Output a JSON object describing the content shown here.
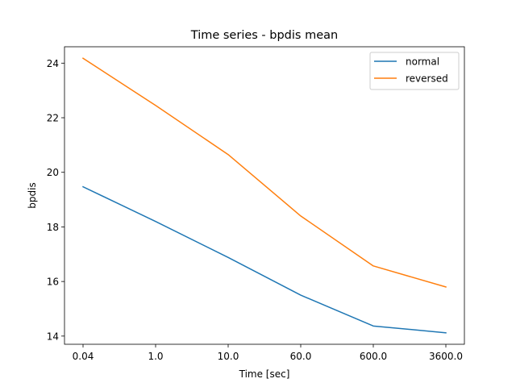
{
  "chart_data": {
    "type": "line",
    "title": "Time series - bpdis mean",
    "xlabel": "Time [sec]",
    "ylabel": "bpdis",
    "categories": [
      "0.04",
      "1.0",
      "10.0",
      "60.0",
      "600.0",
      "3600.0"
    ],
    "ylim": [
      13.7,
      24.6
    ],
    "yticks": [
      14,
      16,
      18,
      20,
      22,
      24
    ],
    "grid": false,
    "legend_position": "top-right",
    "series": [
      {
        "name": "normal",
        "color": "#1f77b4",
        "values": [
          19.47,
          18.2,
          16.88,
          15.5,
          14.37,
          14.12
        ]
      },
      {
        "name": "reversed",
        "color": "#ff7f0e",
        "values": [
          24.18,
          22.45,
          20.65,
          18.4,
          16.57,
          15.8
        ]
      }
    ]
  }
}
